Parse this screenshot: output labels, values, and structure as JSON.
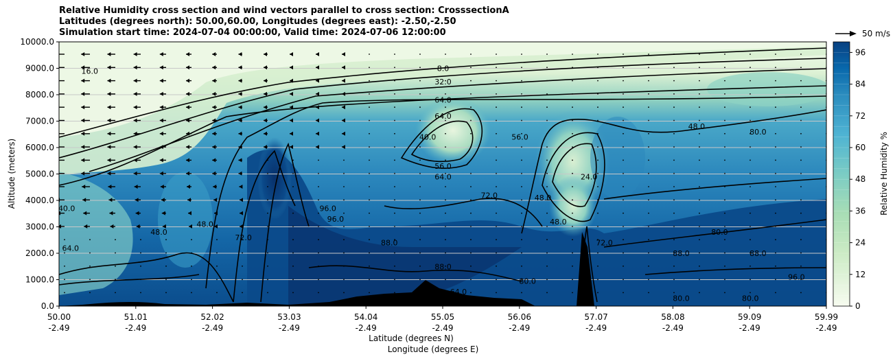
{
  "chart_data": {
    "type": "heatmap",
    "title_lines": [
      "Relative Humidity cross section and wind vectors parallel to cross section: CrosssectionA",
      "Latitudes (degrees north): 50.00,60.00, Longitudes (degrees east): -2.50,-2.50",
      "Simulation start time: 2024-07-04 00:00:00, Valid time: 2024-07-06 12:00:00"
    ],
    "ylabel": "Altitude (meters)",
    "xlabel_line1": "Latitude (degrees N)",
    "xlabel_line2": "Longitude (degrees E)",
    "ylim": [
      0,
      10000
    ],
    "yticks": [
      "0.0",
      "1000.0",
      "2000.0",
      "3000.0",
      "4000.0",
      "5000.0",
      "6000.0",
      "7000.0",
      "8000.0",
      "9000.0",
      "10000.0"
    ],
    "xticks_lat": [
      "50.00",
      "51.01",
      "52.02",
      "53.03",
      "54.04",
      "55.05",
      "56.06",
      "57.07",
      "58.08",
      "59.09",
      "59.99"
    ],
    "xticks_lon": [
      "-2.49",
      "-2.49",
      "-2.49",
      "-2.49",
      "-2.49",
      "-2.49",
      "-2.49",
      "-2.49",
      "-2.49",
      "-2.49",
      "-2.49"
    ],
    "colorbar": {
      "label": "Relative Humidity %",
      "ticks": [
        "0",
        "12",
        "24",
        "36",
        "48",
        "60",
        "72",
        "84",
        "96"
      ],
      "range": [
        0,
        100
      ]
    },
    "vector_key": "50 m/s",
    "contour_labels": [
      {
        "text": "8.0",
        "lat": 55.0,
        "alt": 9000
      },
      {
        "text": "32.0",
        "lat": 55.0,
        "alt": 8500
      },
      {
        "text": "64.0",
        "lat": 55.0,
        "alt": 7800
      },
      {
        "text": "64.0",
        "lat": 55.0,
        "alt": 7200
      },
      {
        "text": "16.0",
        "lat": 50.4,
        "alt": 8900
      },
      {
        "text": "40.0",
        "lat": 54.8,
        "alt": 6400
      },
      {
        "text": "56.0",
        "lat": 55.0,
        "alt": 5300
      },
      {
        "text": "64.0",
        "lat": 55.0,
        "alt": 4900
      },
      {
        "text": "56.0",
        "lat": 56.0,
        "alt": 6400
      },
      {
        "text": "48.0",
        "lat": 56.3,
        "alt": 4100
      },
      {
        "text": "72.0",
        "lat": 55.6,
        "alt": 4200
      },
      {
        "text": "24.0",
        "lat": 56.9,
        "alt": 4900
      },
      {
        "text": "48.0",
        "lat": 58.3,
        "alt": 6800
      },
      {
        "text": "80.0",
        "lat": 59.1,
        "alt": 6600
      },
      {
        "text": "96.0",
        "lat": 53.5,
        "alt": 3700
      },
      {
        "text": "96.0",
        "lat": 53.6,
        "alt": 3300
      },
      {
        "text": "48.0",
        "lat": 56.5,
        "alt": 3200
      },
      {
        "text": "72.0",
        "lat": 57.1,
        "alt": 2400
      },
      {
        "text": "40.0",
        "lat": 50.1,
        "alt": 3700
      },
      {
        "text": "48.0",
        "lat": 51.3,
        "alt": 2800
      },
      {
        "text": "48.0",
        "lat": 51.9,
        "alt": 3100
      },
      {
        "text": "72.0",
        "lat": 52.4,
        "alt": 2600
      },
      {
        "text": "64.0",
        "lat": 50.15,
        "alt": 2200
      },
      {
        "text": "80.0",
        "lat": 58.6,
        "alt": 2800
      },
      {
        "text": "88.0",
        "lat": 58.1,
        "alt": 2000
      },
      {
        "text": "88.0",
        "lat": 59.1,
        "alt": 2000
      },
      {
        "text": "96.0",
        "lat": 59.6,
        "alt": 1100
      },
      {
        "text": "80.0",
        "lat": 58.1,
        "alt": 300
      },
      {
        "text": "80.0",
        "lat": 59.0,
        "alt": 300
      },
      {
        "text": "88.0",
        "lat": 55.0,
        "alt": 1500
      },
      {
        "text": "64.0",
        "lat": 55.2,
        "alt": 550
      },
      {
        "text": "80.0",
        "lat": 56.1,
        "alt": 950
      },
      {
        "text": "88.0",
        "lat": 54.3,
        "alt": 2400
      }
    ]
  }
}
